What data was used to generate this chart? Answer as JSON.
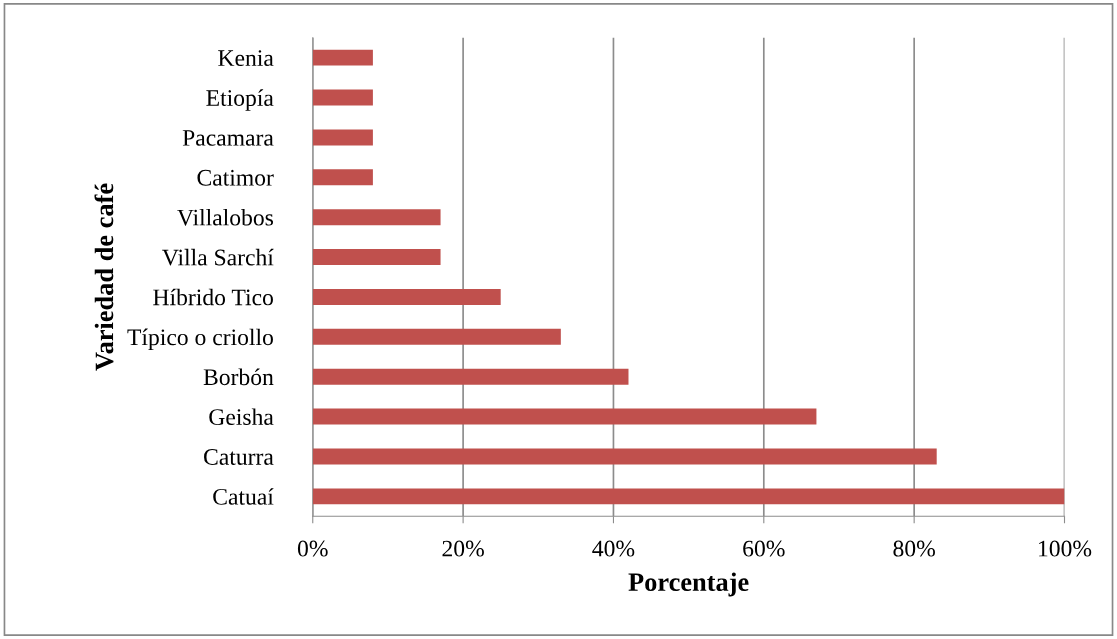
{
  "chart_data": {
    "type": "bar",
    "orientation": "horizontal",
    "xlabel": "Porcentaje",
    "ylabel": "Variedad de café",
    "categories": [
      "Kenia",
      "Etiopía",
      "Pacamara",
      "Catimor",
      "Villalobos",
      "Villa Sarchí",
      "Híbrido Tico",
      "Típico o criollo",
      "Borbón",
      "Geisha",
      "Caturra",
      "Catuaí"
    ],
    "values": [
      8,
      8,
      8,
      8,
      17,
      17,
      25,
      33,
      42,
      67,
      83,
      100
    ],
    "color": "#c0504d",
    "xlim": [
      0,
      100
    ],
    "xticks": [
      {
        "value": 0,
        "label": "0%"
      },
      {
        "value": 20,
        "label": "20%"
      },
      {
        "value": 40,
        "label": "40%"
      },
      {
        "value": 60,
        "label": "60%"
      },
      {
        "value": 80,
        "label": "80%"
      },
      {
        "value": 100,
        "label": "100%"
      }
    ],
    "grid": "x",
    "legend": false
  }
}
